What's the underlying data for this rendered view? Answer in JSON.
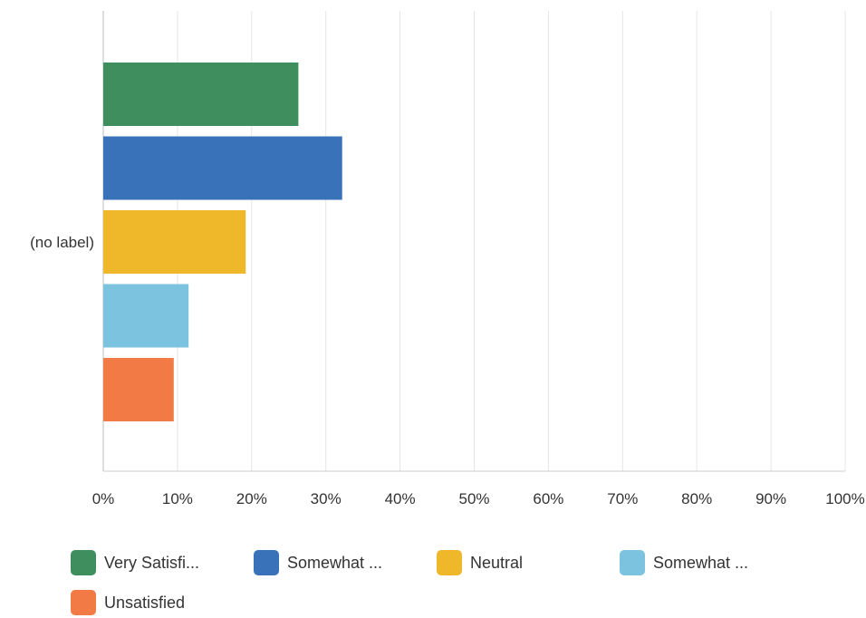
{
  "chart_data": {
    "type": "bar",
    "orientation": "horizontal",
    "categories": [
      "(no label)"
    ],
    "series": [
      {
        "name": "Very Satisfi...",
        "values": [
          26.3
        ],
        "color": "#3f8f5e"
      },
      {
        "name": "Somewhat ...",
        "values": [
          32.2
        ],
        "color": "#3a72ba"
      },
      {
        "name": "Neutral",
        "values": [
          19.2
        ],
        "color": "#efb82a"
      },
      {
        "name": "Somewhat ...",
        "values": [
          11.5
        ],
        "color": "#7cc3e0"
      },
      {
        "name": "Unsatisfied",
        "values": [
          9.5
        ],
        "color": "#f27a45"
      }
    ],
    "xlim": [
      0,
      100
    ],
    "xticks": [
      "0%",
      "10%",
      "20%",
      "30%",
      "40%",
      "50%",
      "60%",
      "70%",
      "80%",
      "90%",
      "100%"
    ],
    "grid": true,
    "legend_position": "bottom"
  }
}
